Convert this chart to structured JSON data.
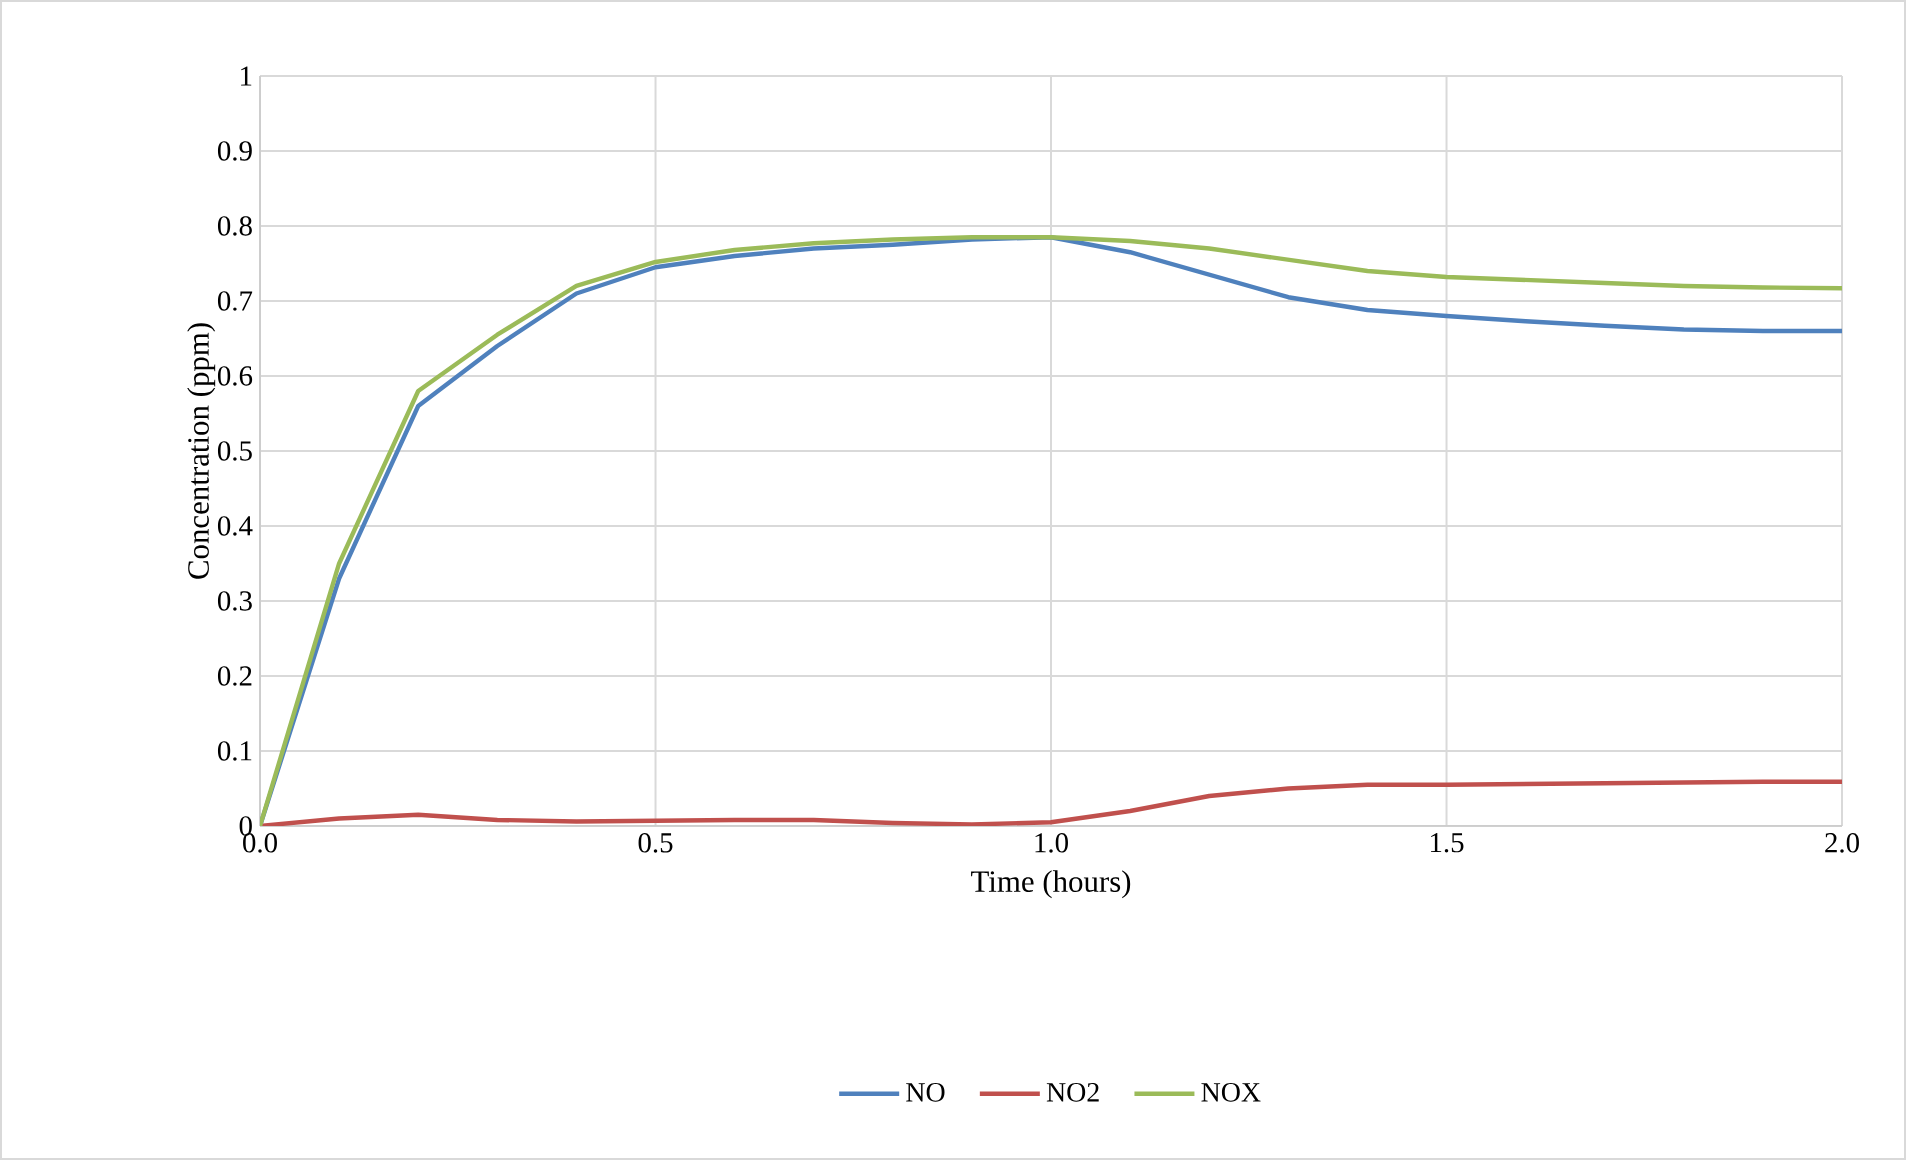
{
  "chart_data": {
    "type": "line",
    "xlabel": "Time (hours)",
    "ylabel": "Concentration (ppm)",
    "x": [
      0,
      0.1,
      0.2,
      0.3,
      0.4,
      0.5,
      0.6,
      0.7,
      0.8,
      0.9,
      1.0,
      1.1,
      1.2,
      1.3,
      1.4,
      1.5,
      1.6,
      1.7,
      1.8,
      1.9,
      2.0
    ],
    "series": [
      {
        "name": "NO",
        "color": "#4f81bd",
        "values": [
          0,
          0.33,
          0.56,
          0.64,
          0.71,
          0.745,
          0.76,
          0.77,
          0.775,
          0.782,
          0.785,
          0.765,
          0.735,
          0.705,
          0.688,
          0.68,
          0.673,
          0.667,
          0.662,
          0.66,
          0.66
        ]
      },
      {
        "name": "NO2",
        "color": "#c0504d",
        "values": [
          0,
          0.01,
          0.015,
          0.008,
          0.006,
          0.007,
          0.008,
          0.008,
          0.004,
          0.002,
          0.005,
          0.02,
          0.04,
          0.05,
          0.055,
          0.055,
          0.056,
          0.057,
          0.058,
          0.059,
          0.059
        ]
      },
      {
        "name": "NOX",
        "color": "#9bbb59",
        "values": [
          0,
          0.35,
          0.58,
          0.655,
          0.72,
          0.752,
          0.768,
          0.777,
          0.782,
          0.785,
          0.785,
          0.78,
          0.77,
          0.755,
          0.74,
          0.732,
          0.728,
          0.724,
          0.72,
          0.718,
          0.717
        ]
      }
    ],
    "xlim": [
      0,
      2
    ],
    "xticks": [
      {
        "value": 0,
        "label": "0.0"
      },
      {
        "value": 0.5,
        "label": "0.5"
      },
      {
        "value": 1,
        "label": "1.0"
      },
      {
        "value": 1.5,
        "label": "1.5"
      },
      {
        "value": 2,
        "label": "2.0"
      }
    ],
    "ylim": [
      0,
      1
    ],
    "yticks": [
      0,
      0.1,
      0.2,
      0.3,
      0.4,
      0.5,
      0.6,
      0.7,
      0.8,
      0.9,
      1
    ],
    "grid": true,
    "legend": "bottom",
    "marker": "none",
    "line_style": "solid"
  }
}
